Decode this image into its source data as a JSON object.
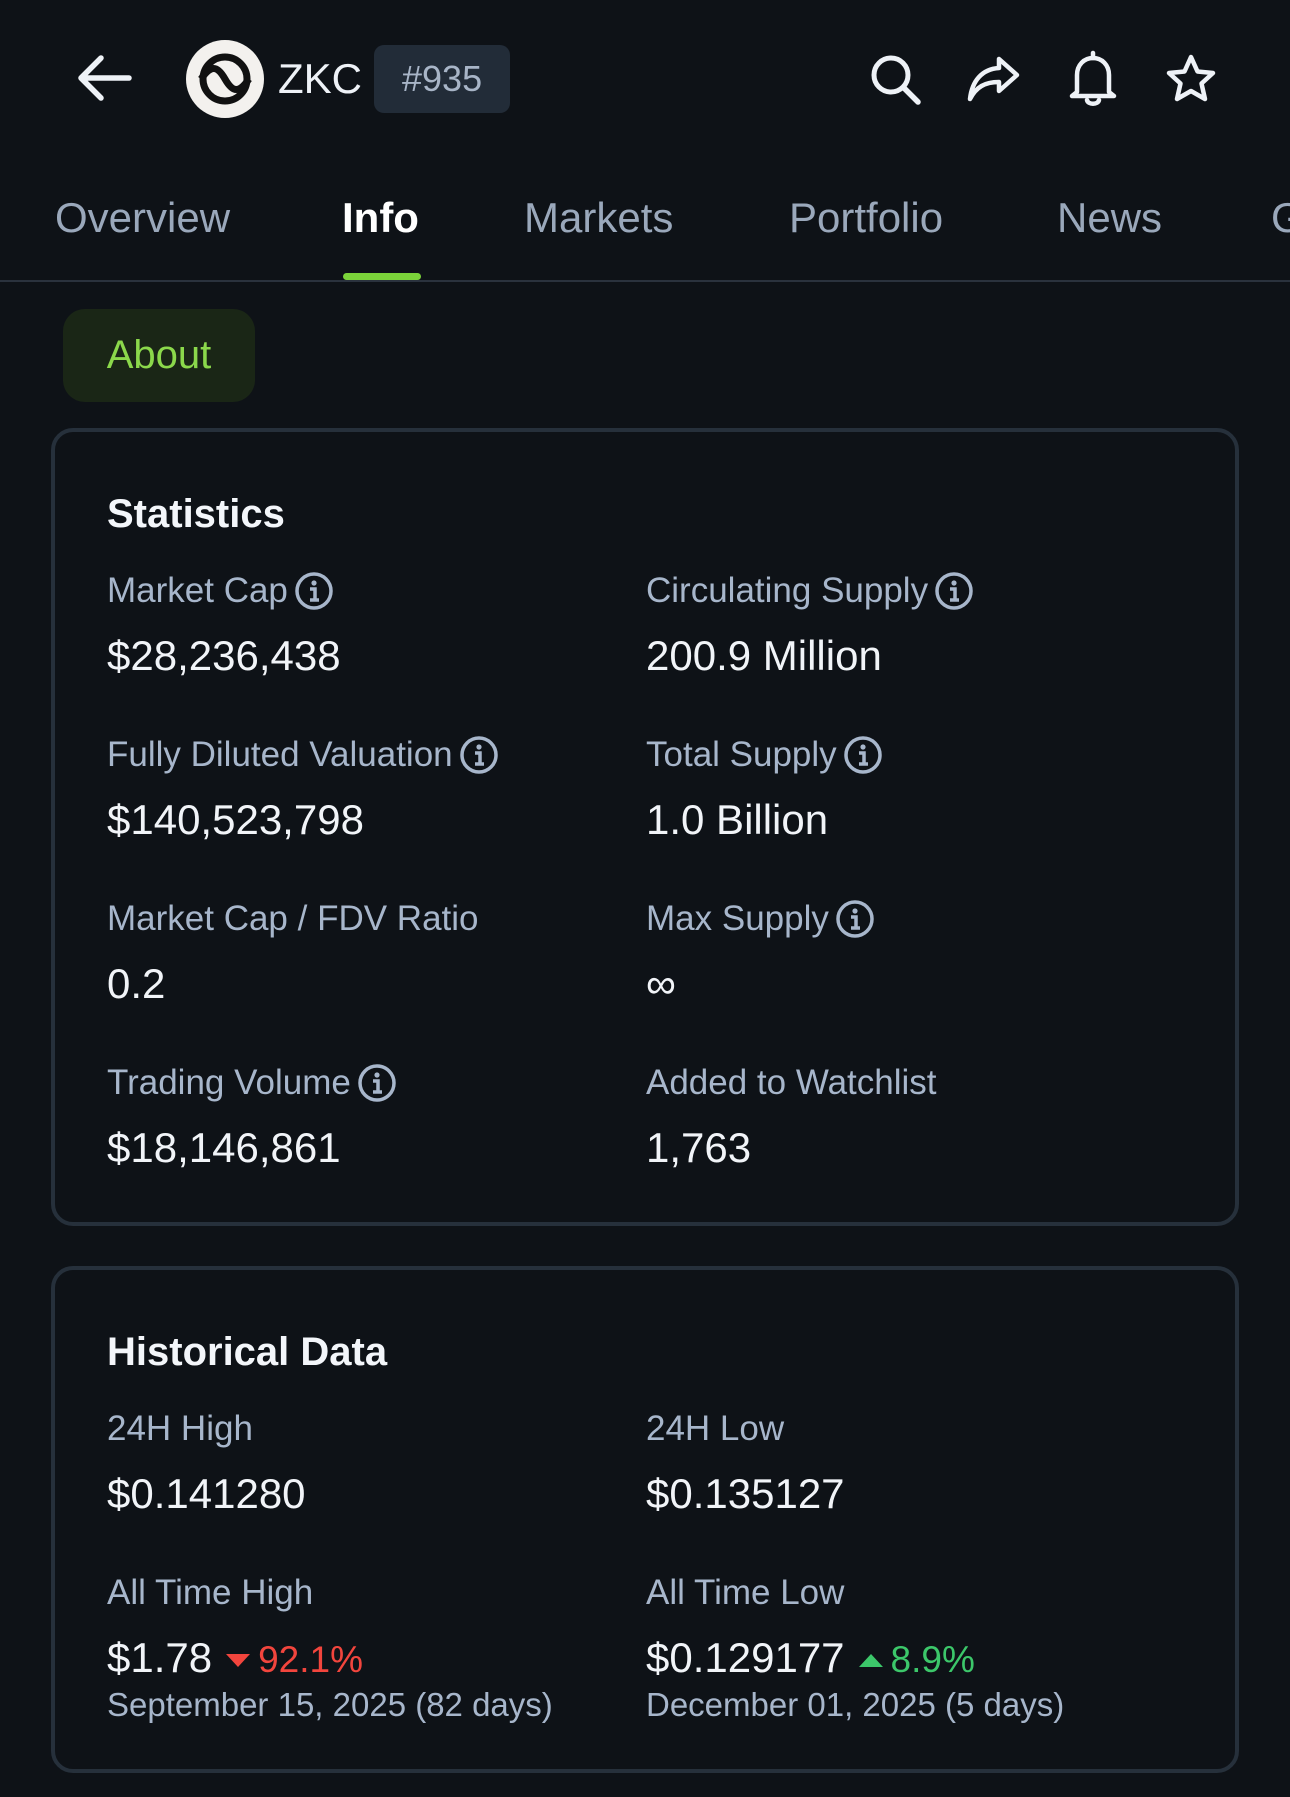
{
  "header": {
    "ticker": "ZKC",
    "rank": "#935",
    "icons": [
      "back-arrow-icon",
      "search-icon",
      "share-icon",
      "bell-icon",
      "star-icon"
    ]
  },
  "tabs": [
    {
      "label": "Overview"
    },
    {
      "label": "Info",
      "active": true
    },
    {
      "label": "Markets"
    },
    {
      "label": "Portfolio"
    },
    {
      "label": "News"
    },
    {
      "label": "G"
    }
  ],
  "about": {
    "label": "About"
  },
  "statistics": {
    "title": "Statistics",
    "market_cap": {
      "label": "Market Cap",
      "value": "$28,236,438"
    },
    "circulating_supply": {
      "label": "Circulating Supply",
      "value": "200.9 Million"
    },
    "fdv": {
      "label": "Fully Diluted Valuation",
      "value": "$140,523,798"
    },
    "total_supply": {
      "label": "Total Supply",
      "value": "1.0 Billion"
    },
    "mc_fdv_ratio": {
      "label": "Market Cap / FDV Ratio",
      "value": "0.2"
    },
    "max_supply": {
      "label": "Max Supply",
      "value": "∞"
    },
    "trading_volume": {
      "label": "Trading Volume",
      "value": "$18,146,861"
    },
    "watchlist": {
      "label": "Added to Watchlist",
      "value": "1,763"
    }
  },
  "historical": {
    "title": "Historical Data",
    "high_24h": {
      "label": "24H High",
      "value": "$0.141280"
    },
    "low_24h": {
      "label": "24H Low",
      "value": "$0.135127"
    },
    "ath": {
      "label": "All Time High",
      "value": "$1.78",
      "change": "92.1%",
      "date": "September 15, 2025 (82 days)"
    },
    "atl": {
      "label": "All Time Low",
      "value": "$0.129177",
      "change": "8.9%",
      "date": "December 01, 2025 (5 days)"
    }
  },
  "colors": {
    "background": "#0e1217",
    "accent": "#7bd33a",
    "down": "#f2453d",
    "up": "#3cc76a"
  }
}
